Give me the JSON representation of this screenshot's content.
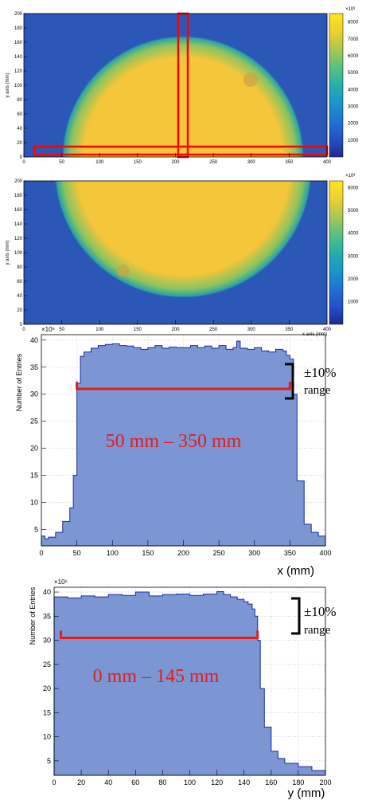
{
  "colors": {
    "map_background": "#2b57b7",
    "map_ring": "#2aa6a0",
    "map_disc": "#f4c63a",
    "map_spot": "#c9a545",
    "roi_outline": "#ff0000",
    "hist_fill": "#7b96d2",
    "hist_line": "#1c2a9e",
    "annotation_red": "#e51c1c",
    "bracket_black": "#000000",
    "grid": "#b8b8b8"
  },
  "colorbar_palette": [
    "#1f2a8f",
    "#2350c4",
    "#1f74d0",
    "#1a97c8",
    "#24b0a8",
    "#57c083",
    "#a8c850",
    "#f2cf30",
    "#fbe71c"
  ],
  "chart_data": [
    {
      "type": "heatmap",
      "ylabel": "y axis (mm)",
      "xlabel": "",
      "xlim": [
        0,
        400
      ],
      "ylim": [
        0,
        200
      ],
      "x_ticks": [
        "0",
        "50",
        "100",
        "150",
        "200",
        "250",
        "300",
        "350",
        "400"
      ],
      "y_ticks": [
        "0",
        "20",
        "40",
        "60",
        "80",
        "100",
        "120",
        "140",
        "160",
        "180",
        "200"
      ],
      "colorbar": {
        "ticks": [
          "1000",
          "2000",
          "3000",
          "4000",
          "5000",
          "6000",
          "7000",
          "8000"
        ],
        "exponent": "×10³",
        "range": [
          0,
          8500
        ]
      },
      "disc": {
        "center": [
          200,
          0
        ],
        "radius": 150
      },
      "spot": {
        "center": [
          300,
          107
        ],
        "radius": 10
      },
      "roi_rectangles": [
        {
          "x0": 0,
          "x1": 400,
          "y0": 0,
          "y1": 10
        },
        {
          "x0": 195,
          "x1": 205,
          "y0": 0,
          "y1": 200
        }
      ]
    },
    {
      "type": "heatmap",
      "ylabel": "y axis (mm)",
      "xlabel": "x axis (mm)",
      "xlim": [
        0,
        400
      ],
      "ylim": [
        0,
        200
      ],
      "x_ticks": [
        "0",
        "50",
        "100",
        "150",
        "200",
        "250",
        "300",
        "350",
        "400"
      ],
      "y_ticks": [
        "0",
        "20",
        "40",
        "60",
        "80",
        "100",
        "120",
        "140",
        "160",
        "180",
        "200"
      ],
      "colorbar": {
        "ticks": [
          "1000",
          "2000",
          "3000",
          "4000",
          "5000",
          "6000"
        ],
        "exponent": "×10³",
        "range": [
          0,
          6300
        ]
      },
      "disc": {
        "center": [
          200,
          200
        ],
        "radius": 160
      },
      "spot": {
        "center": [
          120,
          70
        ],
        "radius": 9
      }
    },
    {
      "type": "area",
      "ylabel": "Number of Entries",
      "xlabel": "x (mm)",
      "y_exponent": "×10⁶",
      "xlim": [
        0,
        400
      ],
      "ylim": [
        2,
        41
      ],
      "x_ticks": [
        0,
        50,
        100,
        150,
        200,
        250,
        300,
        350,
        400
      ],
      "y_ticks": [
        5,
        10,
        15,
        20,
        25,
        30,
        35,
        40
      ],
      "grid": true,
      "x": [
        0,
        5,
        10,
        20,
        30,
        40,
        45,
        50,
        55,
        60,
        70,
        80,
        90,
        100,
        110,
        120,
        130,
        140,
        150,
        160,
        170,
        180,
        190,
        200,
        210,
        220,
        230,
        240,
        250,
        260,
        270,
        275,
        280,
        290,
        300,
        310,
        320,
        330,
        340,
        345,
        350,
        355,
        360,
        370,
        380,
        390,
        400
      ],
      "values": [
        3.8,
        3.3,
        3.6,
        4.5,
        6.5,
        9.0,
        15.0,
        32.0,
        37.0,
        37.8,
        38.5,
        39.0,
        39.2,
        39.3,
        39.0,
        38.9,
        38.6,
        38.3,
        38.6,
        39.0,
        38.5,
        38.7,
        38.6,
        38.6,
        39.0,
        38.6,
        38.9,
        38.5,
        39.0,
        38.3,
        38.6,
        39.8,
        38.5,
        38.3,
        38.6,
        38.0,
        37.8,
        38.3,
        38.0,
        37.2,
        36.5,
        30.0,
        14.0,
        6.0,
        4.5,
        3.8,
        3.6
      ],
      "annotations": {
        "range_text": "50 mm – 350 mm",
        "range_x": [
          50,
          350
        ],
        "range_y": 31,
        "pct_text": "±10%",
        "range_word": "range"
      }
    },
    {
      "type": "area",
      "ylabel": "Number of Entries",
      "xlabel": "y (mm)",
      "y_exponent": "×10⁶",
      "xlim": [
        0,
        200
      ],
      "ylim": [
        2,
        41
      ],
      "x_ticks": [
        0,
        20,
        40,
        60,
        80,
        100,
        120,
        140,
        160,
        180,
        200
      ],
      "y_ticks": [
        5,
        10,
        15,
        20,
        25,
        30,
        35,
        40
      ],
      "grid": true,
      "x": [
        0,
        10,
        20,
        30,
        40,
        50,
        60,
        70,
        80,
        90,
        100,
        110,
        120,
        125,
        130,
        135,
        140,
        143,
        146,
        148,
        150,
        152,
        155,
        160,
        165,
        170,
        180,
        190,
        200
      ],
      "values": [
        39.0,
        38.8,
        39.2,
        39.0,
        39.5,
        39.3,
        40.0,
        39.2,
        39.5,
        39.6,
        39.3,
        39.6,
        40.1,
        39.5,
        39.0,
        38.5,
        38.0,
        37.5,
        36.5,
        35.0,
        30.0,
        20.0,
        12.0,
        7.0,
        5.5,
        4.5,
        3.8,
        3.0,
        2.6
      ],
      "annotations": {
        "range_text": "0 mm – 145 mm",
        "range_x": [
          5,
          150
        ],
        "range_y": 30.5,
        "pct_text": "±10%",
        "range_word": "range"
      }
    }
  ]
}
